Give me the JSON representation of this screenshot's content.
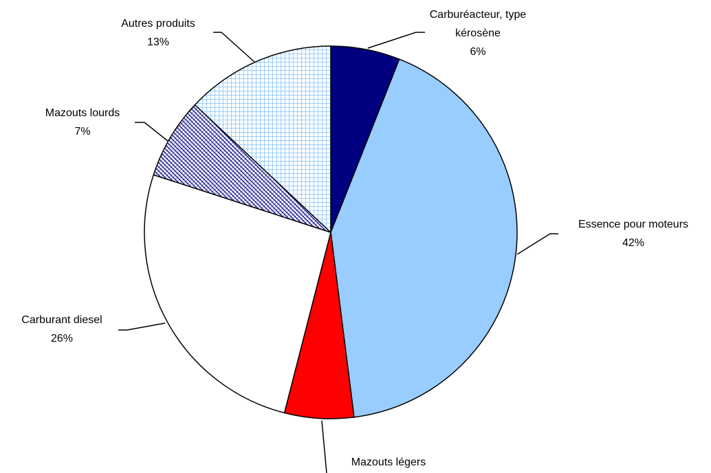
{
  "chart_data": {
    "type": "pie",
    "categories": [
      "Carburéacteur, type kérosène",
      "Essence pour moteurs",
      "Mazouts légers",
      "Carburant diesel",
      "Mazouts lourds",
      "Autres produits"
    ],
    "values": [
      6,
      42,
      6,
      26,
      7,
      13
    ],
    "value_labels": [
      "6%",
      "42%",
      null,
      "26%",
      "7%",
      "13%"
    ],
    "colors": [
      "#000080",
      "#99ccff",
      "#ff0000",
      "#ffffff",
      "#333399",
      "#99ccff"
    ]
  }
}
